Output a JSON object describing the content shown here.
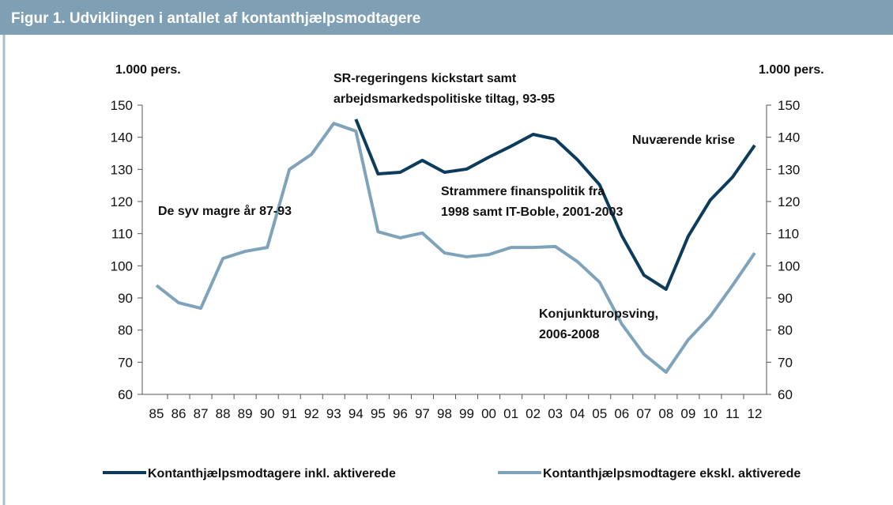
{
  "chart_data": {
    "type": "line",
    "title": "Figur 1. Udviklingen i antallet af kontanthjælpsmodtagere",
    "y_axis_label": "1.000 pers.",
    "y2_axis_label": "1.000 pers.",
    "categories": [
      "85",
      "86",
      "87",
      "88",
      "89",
      "90",
      "91",
      "92",
      "93",
      "94",
      "95",
      "96",
      "97",
      "98",
      "99",
      "00",
      "01",
      "02",
      "03",
      "04",
      "05",
      "06",
      "07",
      "08",
      "09",
      "10",
      "11",
      "12"
    ],
    "series": [
      {
        "name": "Kontanthjælpsmodtagere inkl. aktiverede",
        "color": "#0d3b5c",
        "values": [
          null,
          null,
          null,
          null,
          null,
          null,
          null,
          null,
          null,
          145.6,
          128.6,
          129.1,
          132.8,
          129.1,
          130.1,
          133.8,
          137.2,
          140.9,
          139.4,
          133,
          125.2,
          109.4,
          97.1,
          92.7,
          109.2,
          120.5,
          127.6,
          137.5
        ]
      },
      {
        "name": "Kontanthjælpsmodtagere ekskl. aktiverede",
        "color": "#7fa3ba",
        "values": [
          93.9,
          88.5,
          86.8,
          102.3,
          104.5,
          105.7,
          130,
          134.7,
          144.3,
          141.9,
          110.6,
          108.7,
          110.2,
          104,
          102.8,
          103.5,
          105.7,
          105.7,
          106,
          101.3,
          94.9,
          81.9,
          72.5,
          66.9,
          77,
          84.3,
          93.9,
          104
        ]
      }
    ],
    "ylim": [
      60,
      150
    ],
    "yticks": [
      60,
      70,
      80,
      90,
      100,
      110,
      120,
      130,
      140,
      150
    ],
    "y2lim": [
      60,
      150
    ],
    "y2ticks": [
      60,
      70,
      80,
      90,
      100,
      110,
      120,
      130,
      140,
      150
    ],
    "annotations": [
      "De syv magre år 87-93",
      "SR-regeringens kickstart samt",
      "arbejdsmarkedspolitiske tiltag, 93-95",
      "Strammere finanspolitik  fra",
      "1998 samt IT-Boble, 2001-2003",
      "Konjunkturopsving,",
      "2006-2008",
      "Nuværende krise"
    ],
    "legend": "bottom"
  }
}
